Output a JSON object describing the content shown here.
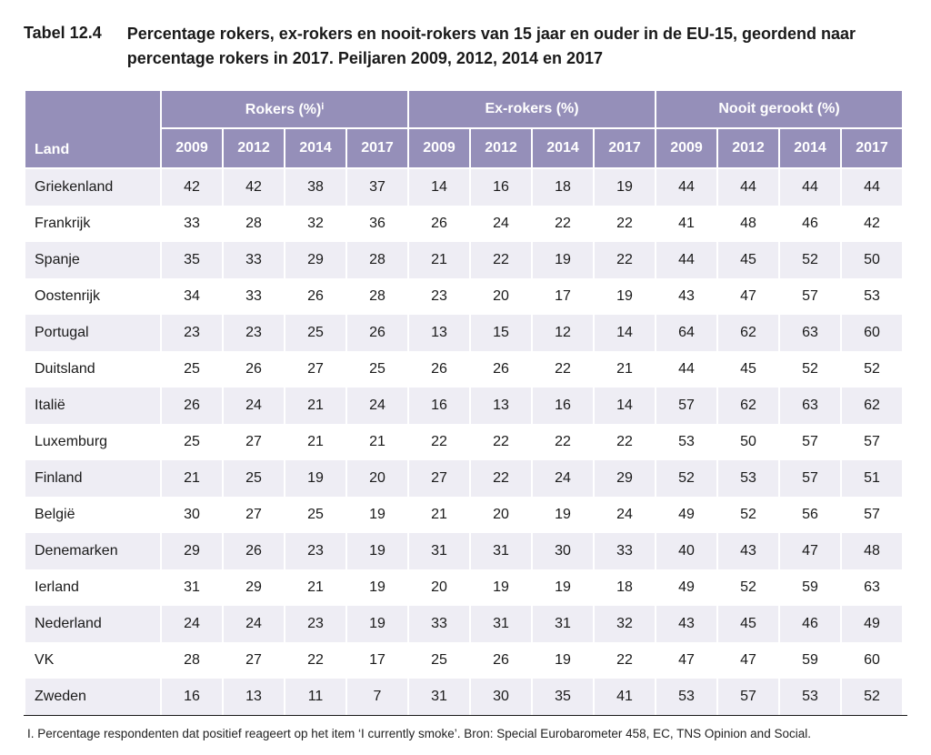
{
  "table": {
    "number": "Tabel 12.4",
    "title": "Percentage rokers, ex-rokers en nooit-rokers van 15 jaar en ouder in de EU-15, geordend naar percentage rokers in 2017. Peiljaren 2009, 2012, 2014 en 2017",
    "country_header": "Land",
    "groups": [
      "Rokers (%)ⁱ",
      "Ex-rokers (%)",
      "Nooit gerookt (%)"
    ],
    "years": [
      "2009",
      "2012",
      "2014",
      "2017"
    ],
    "columns": [
      "2009",
      "2012",
      "2014",
      "2017",
      "2009",
      "2012",
      "2014",
      "2017",
      "2009",
      "2012",
      "2014",
      "2017"
    ],
    "rows": [
      {
        "country": "Griekenland",
        "v": [
          42,
          42,
          38,
          37,
          14,
          16,
          18,
          19,
          44,
          44,
          44,
          44
        ]
      },
      {
        "country": "Frankrijk",
        "v": [
          33,
          28,
          32,
          36,
          26,
          24,
          22,
          22,
          41,
          48,
          46,
          42
        ]
      },
      {
        "country": "Spanje",
        "v": [
          35,
          33,
          29,
          28,
          21,
          22,
          19,
          22,
          44,
          45,
          52,
          50
        ]
      },
      {
        "country": "Oostenrijk",
        "v": [
          34,
          33,
          26,
          28,
          23,
          20,
          17,
          19,
          43,
          47,
          57,
          53
        ]
      },
      {
        "country": "Portugal",
        "v": [
          23,
          23,
          25,
          26,
          13,
          15,
          12,
          14,
          64,
          62,
          63,
          60
        ]
      },
      {
        "country": "Duitsland",
        "v": [
          25,
          26,
          27,
          25,
          26,
          26,
          22,
          21,
          44,
          45,
          52,
          52
        ]
      },
      {
        "country": "Italië",
        "v": [
          26,
          24,
          21,
          24,
          16,
          13,
          16,
          14,
          57,
          62,
          63,
          62
        ]
      },
      {
        "country": "Luxemburg",
        "v": [
          25,
          27,
          21,
          21,
          22,
          22,
          22,
          22,
          53,
          50,
          57,
          57
        ]
      },
      {
        "country": "Finland",
        "v": [
          21,
          25,
          19,
          20,
          27,
          22,
          24,
          29,
          52,
          53,
          57,
          51
        ]
      },
      {
        "country": "België",
        "v": [
          30,
          27,
          25,
          19,
          21,
          20,
          19,
          24,
          49,
          52,
          56,
          57
        ]
      },
      {
        "country": "Denemarken",
        "v": [
          29,
          26,
          23,
          19,
          31,
          31,
          30,
          33,
          40,
          43,
          47,
          48
        ]
      },
      {
        "country": "Ierland",
        "v": [
          31,
          29,
          21,
          19,
          20,
          19,
          19,
          18,
          49,
          52,
          59,
          63
        ]
      },
      {
        "country": "Nederland",
        "v": [
          24,
          24,
          23,
          19,
          33,
          31,
          31,
          32,
          43,
          45,
          46,
          49
        ]
      },
      {
        "country": "VK",
        "v": [
          28,
          27,
          22,
          17,
          25,
          26,
          19,
          22,
          47,
          47,
          59,
          60
        ]
      },
      {
        "country": "Zweden",
        "v": [
          16,
          13,
          11,
          7,
          31,
          30,
          35,
          41,
          53,
          57,
          53,
          52
        ]
      }
    ],
    "footnote": "I. Percentage respondenten dat positief reageert op het item ‘I currently smoke’. Bron: Special Eurobarometer 458, EC, TNS Opinion and Social.",
    "colors": {
      "header_bg": "#958fb9",
      "header_text": "#ffffff",
      "row_odd_bg": "#eeedf4",
      "row_even_bg": "#ffffff",
      "text": "#1a1a1a"
    },
    "title_fontsize": 18,
    "body_fontsize": 16,
    "footnote_fontsize": 13.5
  }
}
